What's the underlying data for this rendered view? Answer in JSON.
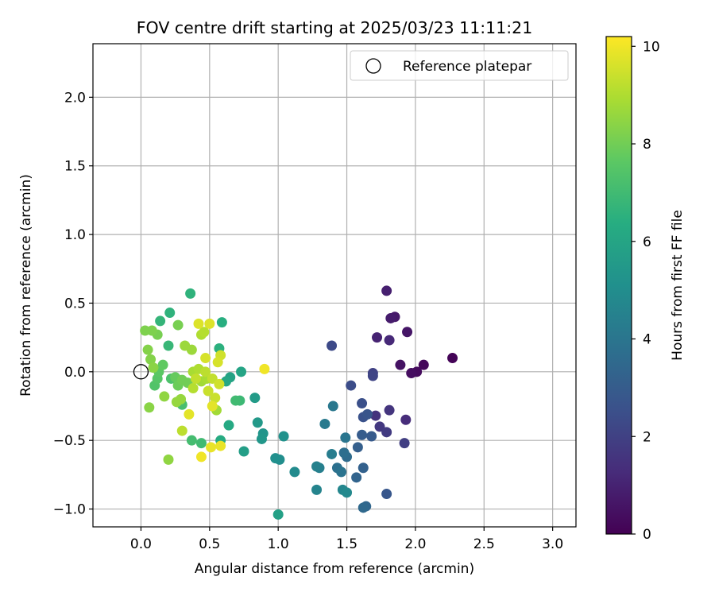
{
  "chart_data": {
    "type": "scatter",
    "title": "FOV centre drift starting at 2025/03/23 11:11:21",
    "xlabel": "Angular distance from reference (arcmin)",
    "ylabel": "Rotation from reference (arcmin)",
    "xlim": [
      -0.35,
      3.17
    ],
    "ylim": [
      -1.13,
      2.39
    ],
    "xticks": [
      0.0,
      0.5,
      1.0,
      1.5,
      2.0,
      2.5,
      3.0
    ],
    "xtick_labels": [
      "0.0",
      "0.5",
      "1.0",
      "1.5",
      "2.0",
      "2.5",
      "3.0"
    ],
    "yticks": [
      -1.0,
      -0.5,
      0.0,
      0.5,
      1.0,
      1.5,
      2.0
    ],
    "ytick_labels": [
      "−1.0",
      "−0.5",
      "0.0",
      "0.5",
      "1.0",
      "1.5",
      "2.0"
    ],
    "grid": true,
    "legend": {
      "placement": "upper right",
      "entries": [
        {
          "label": "Reference platepar",
          "marker": "open-circle",
          "x": 0.0,
          "y": 0.0
        }
      ]
    },
    "colorbar": {
      "label": "Hours from first FF file",
      "colormap": "viridis",
      "min": 0,
      "max": 10.2,
      "ticks": [
        0,
        2,
        4,
        6,
        8,
        10
      ],
      "tick_labels": [
        "0",
        "2",
        "4",
        "6",
        "8",
        "10"
      ]
    },
    "points": [
      {
        "x": 2.27,
        "y": 0.1,
        "h": 0.1
      },
      {
        "x": 2.06,
        "y": 0.05,
        "h": 0.2
      },
      {
        "x": 2.01,
        "y": 0.0,
        "h": 0.3
      },
      {
        "x": 1.97,
        "y": -0.01,
        "h": 0.4
      },
      {
        "x": 1.89,
        "y": 0.05,
        "h": 0.5
      },
      {
        "x": 1.94,
        "y": 0.29,
        "h": 0.6
      },
      {
        "x": 1.85,
        "y": 0.4,
        "h": 0.7
      },
      {
        "x": 1.82,
        "y": 0.39,
        "h": 0.8
      },
      {
        "x": 1.79,
        "y": 0.59,
        "h": 0.9
      },
      {
        "x": 1.72,
        "y": 0.25,
        "h": 1.0
      },
      {
        "x": 1.81,
        "y": 0.23,
        "h": 1.2
      },
      {
        "x": 1.93,
        "y": -0.35,
        "h": 1.3
      },
      {
        "x": 1.71,
        "y": -0.32,
        "h": 1.5
      },
      {
        "x": 1.81,
        "y": -0.28,
        "h": 1.6
      },
      {
        "x": 1.74,
        "y": -0.4,
        "h": 1.7
      },
      {
        "x": 1.79,
        "y": -0.44,
        "h": 1.8
      },
      {
        "x": 1.92,
        "y": -0.52,
        "h": 1.9
      },
      {
        "x": 1.69,
        "y": -0.01,
        "h": 2.0
      },
      {
        "x": 1.69,
        "y": -0.03,
        "h": 2.1
      },
      {
        "x": 1.39,
        "y": 0.19,
        "h": 2.3
      },
      {
        "x": 1.53,
        "y": -0.1,
        "h": 2.4
      },
      {
        "x": 1.61,
        "y": -0.23,
        "h": 2.5
      },
      {
        "x": 1.62,
        "y": -0.33,
        "h": 2.6
      },
      {
        "x": 1.65,
        "y": -0.31,
        "h": 2.7
      },
      {
        "x": 1.79,
        "y": -0.89,
        "h": 2.8
      },
      {
        "x": 1.68,
        "y": -0.47,
        "h": 2.9
      },
      {
        "x": 1.61,
        "y": -0.46,
        "h": 3.0
      },
      {
        "x": 1.58,
        "y": -0.55,
        "h": 3.1
      },
      {
        "x": 1.62,
        "y": -0.7,
        "h": 3.2
      },
      {
        "x": 1.57,
        "y": -0.77,
        "h": 3.3
      },
      {
        "x": 1.64,
        "y": -0.98,
        "h": 3.4
      },
      {
        "x": 1.62,
        "y": -0.99,
        "h": 3.5
      },
      {
        "x": 1.5,
        "y": -0.62,
        "h": 3.6
      },
      {
        "x": 1.48,
        "y": -0.59,
        "h": 3.7
      },
      {
        "x": 1.43,
        "y": -0.7,
        "h": 3.8
      },
      {
        "x": 1.46,
        "y": -0.73,
        "h": 3.9
      },
      {
        "x": 1.49,
        "y": -0.48,
        "h": 4.0
      },
      {
        "x": 1.4,
        "y": -0.25,
        "h": 4.1
      },
      {
        "x": 1.34,
        "y": -0.38,
        "h": 4.2
      },
      {
        "x": 1.39,
        "y": -0.6,
        "h": 4.3
      },
      {
        "x": 1.3,
        "y": -0.7,
        "h": 4.4
      },
      {
        "x": 1.28,
        "y": -0.69,
        "h": 4.5
      },
      {
        "x": 1.28,
        "y": -0.86,
        "h": 4.6
      },
      {
        "x": 1.47,
        "y": -0.86,
        "h": 4.7
      },
      {
        "x": 1.5,
        "y": -0.88,
        "h": 4.8
      },
      {
        "x": 1.12,
        "y": -0.73,
        "h": 4.9
      },
      {
        "x": 1.01,
        "y": -0.64,
        "h": 5.0
      },
      {
        "x": 0.98,
        "y": -0.63,
        "h": 5.1
      },
      {
        "x": 1.04,
        "y": -0.47,
        "h": 5.2
      },
      {
        "x": 0.89,
        "y": -0.45,
        "h": 5.3
      },
      {
        "x": 0.88,
        "y": -0.49,
        "h": 5.4
      },
      {
        "x": 0.85,
        "y": -0.37,
        "h": 5.5
      },
      {
        "x": 0.83,
        "y": -0.19,
        "h": 5.6
      },
      {
        "x": 0.75,
        "y": -0.58,
        "h": 5.7
      },
      {
        "x": 1.0,
        "y": -1.04,
        "h": 5.8
      },
      {
        "x": 0.65,
        "y": -0.04,
        "h": 5.9
      },
      {
        "x": 0.73,
        "y": 0.0,
        "h": 6.0
      },
      {
        "x": 0.62,
        "y": -0.07,
        "h": 6.1
      },
      {
        "x": 0.64,
        "y": -0.39,
        "h": 6.2
      },
      {
        "x": 0.58,
        "y": -0.5,
        "h": 6.3
      },
      {
        "x": 0.59,
        "y": 0.36,
        "h": 6.4
      },
      {
        "x": 0.57,
        "y": 0.17,
        "h": 6.5
      },
      {
        "x": 0.36,
        "y": 0.57,
        "h": 6.6
      },
      {
        "x": 0.21,
        "y": 0.43,
        "h": 6.6
      },
      {
        "x": 0.14,
        "y": 0.37,
        "h": 6.7
      },
      {
        "x": 0.2,
        "y": 0.19,
        "h": 6.8
      },
      {
        "x": 0.72,
        "y": -0.21,
        "h": 6.9
      },
      {
        "x": 0.69,
        "y": -0.21,
        "h": 7.0
      },
      {
        "x": 0.44,
        "y": -0.52,
        "h": 7.0
      },
      {
        "x": 0.37,
        "y": -0.5,
        "h": 7.1
      },
      {
        "x": 0.3,
        "y": -0.24,
        "h": 7.2
      },
      {
        "x": 0.22,
        "y": -0.05,
        "h": 7.3
      },
      {
        "x": 0.1,
        "y": -0.1,
        "h": 7.4
      },
      {
        "x": 0.12,
        "y": -0.05,
        "h": 7.5
      },
      {
        "x": 0.13,
        "y": 0.0,
        "h": 7.6
      },
      {
        "x": 0.16,
        "y": 0.05,
        "h": 7.7
      },
      {
        "x": 0.25,
        "y": -0.04,
        "h": 7.8
      },
      {
        "x": 0.27,
        "y": -0.1,
        "h": 7.9
      },
      {
        "x": 0.3,
        "y": -0.06,
        "h": 8.0
      },
      {
        "x": 0.34,
        "y": -0.08,
        "h": 8.0
      },
      {
        "x": 0.27,
        "y": 0.34,
        "h": 8.1
      },
      {
        "x": 0.12,
        "y": 0.27,
        "h": 8.1
      },
      {
        "x": 0.08,
        "y": 0.3,
        "h": 8.2
      },
      {
        "x": 0.03,
        "y": 0.3,
        "h": 8.2
      },
      {
        "x": 0.05,
        "y": 0.16,
        "h": 8.3
      },
      {
        "x": 0.07,
        "y": 0.09,
        "h": 8.3
      },
      {
        "x": 0.09,
        "y": 0.03,
        "h": 8.4
      },
      {
        "x": 0.06,
        "y": -0.26,
        "h": 8.4
      },
      {
        "x": 0.2,
        "y": -0.64,
        "h": 8.5
      },
      {
        "x": 0.17,
        "y": -0.18,
        "h": 8.5
      },
      {
        "x": 0.26,
        "y": -0.22,
        "h": 8.6
      },
      {
        "x": 0.29,
        "y": -0.2,
        "h": 8.6
      },
      {
        "x": 0.32,
        "y": 0.19,
        "h": 8.7
      },
      {
        "x": 0.37,
        "y": 0.16,
        "h": 8.7
      },
      {
        "x": 0.44,
        "y": -0.07,
        "h": 8.8
      },
      {
        "x": 0.55,
        "y": -0.28,
        "h": 8.8
      },
      {
        "x": 0.48,
        "y": -0.05,
        "h": 8.9
      },
      {
        "x": 0.38,
        "y": 0.0,
        "h": 8.9
      },
      {
        "x": 0.42,
        "y": 0.02,
        "h": 9.0
      },
      {
        "x": 0.44,
        "y": 0.27,
        "h": 9.0
      },
      {
        "x": 0.38,
        "y": -0.12,
        "h": 9.1
      },
      {
        "x": 0.46,
        "y": 0.29,
        "h": 9.1
      },
      {
        "x": 0.3,
        "y": -0.43,
        "h": 9.2
      },
      {
        "x": 0.47,
        "y": 0.0,
        "h": 9.2
      },
      {
        "x": 0.52,
        "y": -0.05,
        "h": 9.3
      },
      {
        "x": 0.4,
        "y": -0.05,
        "h": 9.3
      },
      {
        "x": 0.54,
        "y": -0.19,
        "h": 9.4
      },
      {
        "x": 0.49,
        "y": -0.14,
        "h": 9.4
      },
      {
        "x": 0.57,
        "y": -0.09,
        "h": 9.5
      },
      {
        "x": 0.58,
        "y": 0.12,
        "h": 9.5
      },
      {
        "x": 0.56,
        "y": 0.07,
        "h": 9.6
      },
      {
        "x": 0.47,
        "y": 0.1,
        "h": 9.6
      },
      {
        "x": 0.5,
        "y": 0.35,
        "h": 9.7
      },
      {
        "x": 0.42,
        "y": 0.35,
        "h": 9.7
      },
      {
        "x": 0.35,
        "y": -0.31,
        "h": 9.8
      },
      {
        "x": 0.52,
        "y": -0.25,
        "h": 9.8
      },
      {
        "x": 0.58,
        "y": -0.54,
        "h": 9.9
      },
      {
        "x": 0.51,
        "y": -0.55,
        "h": 9.9
      },
      {
        "x": 0.44,
        "y": -0.62,
        "h": 10.0
      },
      {
        "x": 0.9,
        "y": 0.02,
        "h": 10.0
      }
    ]
  }
}
